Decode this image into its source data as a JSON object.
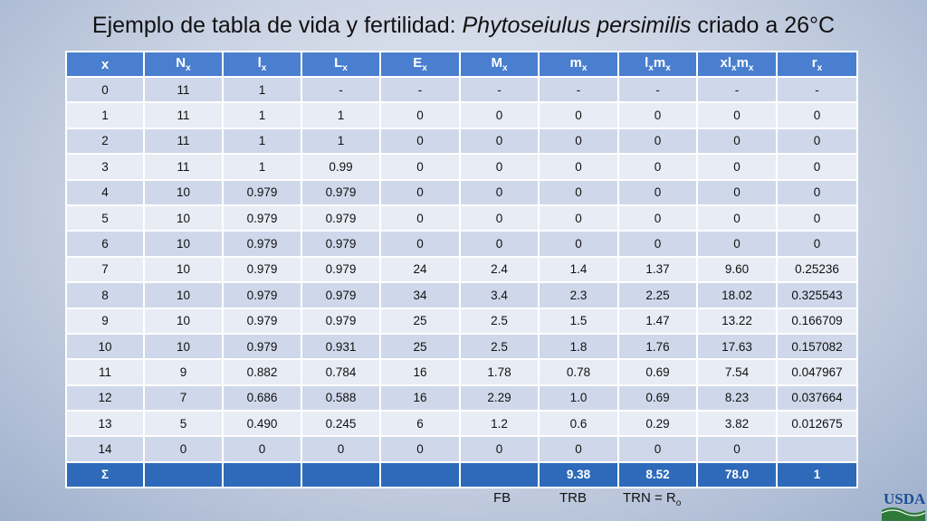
{
  "title": {
    "prefix": "Ejemplo de tabla de vida y fertilidad: ",
    "species": "Phytoseiulus persimilis",
    "suffix": " criado a 26°C"
  },
  "table": {
    "headers": [
      {
        "base": "x",
        "sub": ""
      },
      {
        "base": "N",
        "sub": "x"
      },
      {
        "base": "l",
        "sub": "x"
      },
      {
        "base": "L",
        "sub": "x"
      },
      {
        "base": "E",
        "sub": "x"
      },
      {
        "base": "M",
        "sub": "x"
      },
      {
        "base": "m",
        "sub": "x"
      },
      {
        "base": "l",
        "sub": "x",
        "base2": "m",
        "sub2": "x"
      },
      {
        "base": "xl",
        "sub": "x",
        "base2": "m",
        "sub2": "x"
      },
      {
        "base": "r",
        "sub": "x"
      }
    ],
    "rows": [
      [
        "0",
        "11",
        "1",
        "-",
        "-",
        "-",
        "-",
        "-",
        "-",
        "-"
      ],
      [
        "1",
        "11",
        "1",
        "1",
        "0",
        "0",
        "0",
        "0",
        "0",
        "0"
      ],
      [
        "2",
        "11",
        "1",
        "1",
        "0",
        "0",
        "0",
        "0",
        "0",
        "0"
      ],
      [
        "3",
        "11",
        "1",
        "0.99",
        "0",
        "0",
        "0",
        "0",
        "0",
        "0"
      ],
      [
        "4",
        "10",
        "0.979",
        "0.979",
        "0",
        "0",
        "0",
        "0",
        "0",
        "0"
      ],
      [
        "5",
        "10",
        "0.979",
        "0.979",
        "0",
        "0",
        "0",
        "0",
        "0",
        "0"
      ],
      [
        "6",
        "10",
        "0.979",
        "0.979",
        "0",
        "0",
        "0",
        "0",
        "0",
        "0"
      ],
      [
        "7",
        "10",
        "0.979",
        "0.979",
        "24",
        "2.4",
        "1.4",
        "1.37",
        "9.60",
        "0.25236"
      ],
      [
        "8",
        "10",
        "0.979",
        "0.979",
        "34",
        "3.4",
        "2.3",
        "2.25",
        "18.02",
        "0.325543"
      ],
      [
        "9",
        "10",
        "0.979",
        "0.979",
        "25",
        "2.5",
        "1.5",
        "1.47",
        "13.22",
        "0.166709"
      ],
      [
        "10",
        "10",
        "0.979",
        "0.931",
        "25",
        "2.5",
        "1.8",
        "1.76",
        "17.63",
        "0.157082"
      ],
      [
        "11",
        "9",
        "0.882",
        "0.784",
        "16",
        "1.78",
        "0.78",
        "0.69",
        "7.54",
        "0.047967"
      ],
      [
        "12",
        "7",
        "0.686",
        "0.588",
        "16",
        "2.29",
        "1.0",
        "0.69",
        "8.23",
        "0.037664"
      ],
      [
        "13",
        "5",
        "0.490",
        "0.245",
        "6",
        "1.2",
        "0.6",
        "0.29",
        "3.82",
        "0.012675"
      ],
      [
        "14",
        "0",
        "0",
        "0",
        "0",
        "0",
        "0",
        "0",
        "0",
        ""
      ]
    ],
    "sum_row": [
      "Σ",
      "",
      "",
      "",
      "",
      "",
      "9.38",
      "8.52",
      "78.0",
      "1"
    ]
  },
  "footer": {
    "fb": "FB",
    "trb": "TRB",
    "trn_prefix": "TRN = R",
    "trn_sub": "o"
  },
  "logo": {
    "text": "USDA"
  },
  "colors": {
    "header_blue": "#4a7fcf",
    "sum_row_blue": "#2e6ab9",
    "row_band_dark": "#cfd8ea",
    "row_band_light": "#e8ecf5"
  }
}
